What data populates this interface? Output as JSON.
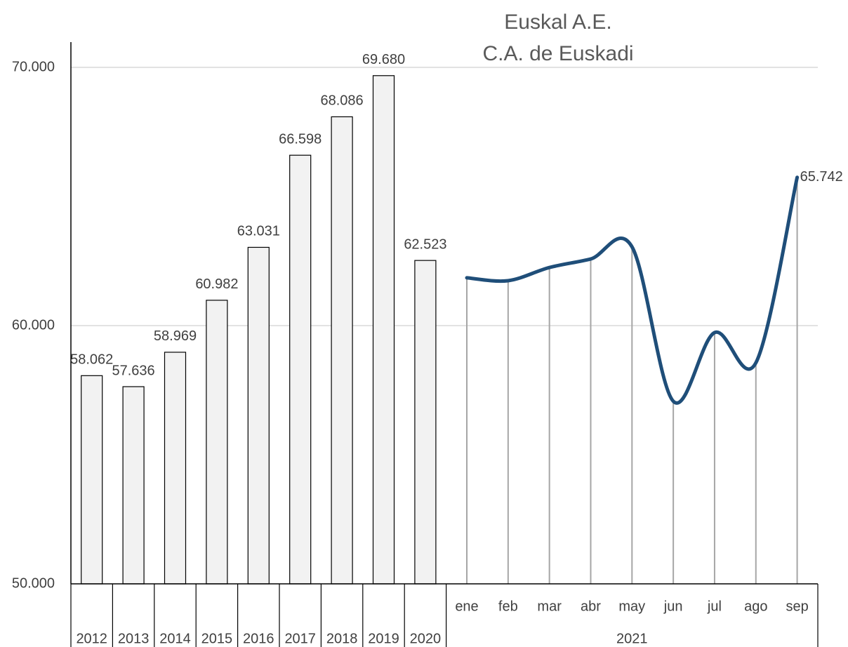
{
  "chart_data": [
    {
      "type": "bar",
      "categories": [
        "2012",
        "2013",
        "2014",
        "2015",
        "2016",
        "2017",
        "2018",
        "2019",
        "2020"
      ],
      "values": [
        58062,
        57636,
        58969,
        60982,
        63031,
        66598,
        68086,
        69680,
        62523
      ],
      "value_labels": [
        "58.062",
        "57.636",
        "58.969",
        "60.982",
        "63.031",
        "66.598",
        "68.086",
        "69.680",
        "62.523"
      ],
      "color": "#f2f2f2",
      "ylim": [
        50000,
        70000
      ],
      "yticks": [
        {
          "value": 50000,
          "label": "50.000"
        },
        {
          "value": 60000,
          "label": "60.000"
        },
        {
          "value": 70000,
          "label": "70.000"
        }
      ],
      "grid": true
    },
    {
      "type": "line",
      "title": "Euskal A.E.",
      "subtitle": "C.A. de Euskadi",
      "group": "2021",
      "categories": [
        "ene",
        "feb",
        "mar",
        "abr",
        "may",
        "jun",
        "jul",
        "ago",
        "sep"
      ],
      "values": [
        61850,
        61740,
        62250,
        62580,
        63050,
        57070,
        59730,
        58560,
        65742
      ],
      "value_labels": [
        null,
        null,
        null,
        null,
        null,
        null,
        null,
        null,
        "65.742"
      ],
      "color": "#1f4e79"
    }
  ]
}
